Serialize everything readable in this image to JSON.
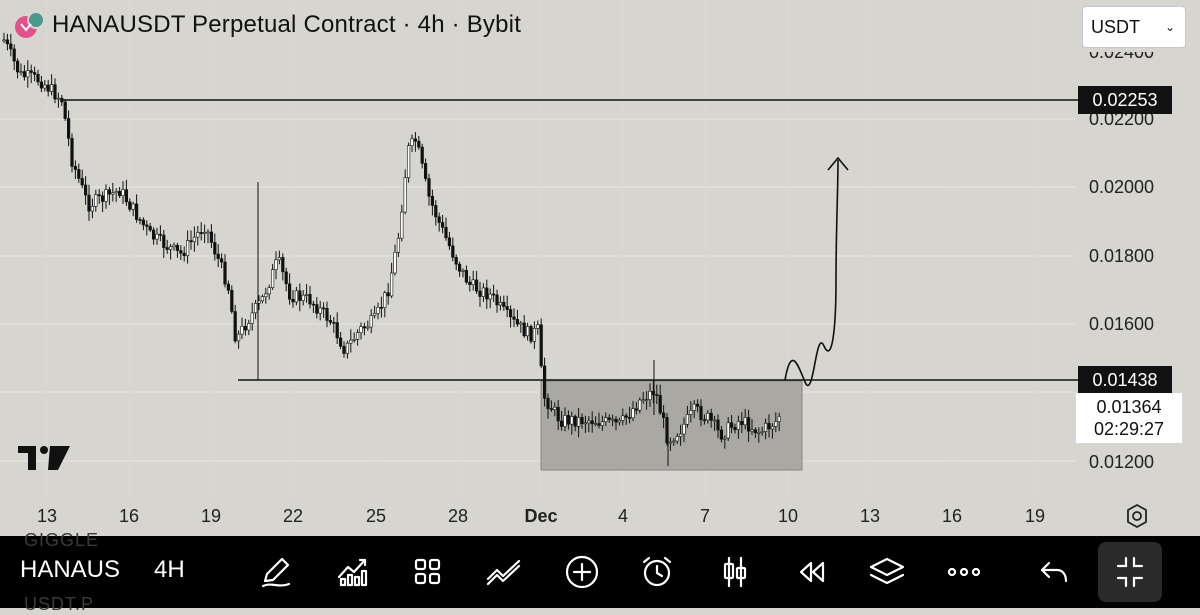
{
  "header": {
    "title": "HANAUSDT Perpetual Contract · 4h · Bybit",
    "currency_select": "USDT"
  },
  "price_axis": {
    "top_partial_label": "0.02400",
    "labels": [
      "0.02200",
      "0.02000",
      "0.01800",
      "0.01600",
      "0.01200"
    ],
    "resistance_tag": "0.02253",
    "support_tag": "0.01438",
    "last_price": "0.01364",
    "countdown": "02:29:27"
  },
  "time_axis": {
    "labels": [
      "13",
      "16",
      "19",
      "22",
      "25",
      "28",
      "Dec",
      "4",
      "7",
      "10",
      "13",
      "16",
      "19"
    ]
  },
  "toolbar": {
    "symbol": "HANAUS",
    "timeframe": "4H",
    "ghost_top": "GIGGLE",
    "ghost_bottom": "USDT.P"
  },
  "colors": {
    "background": "#d6d5d0",
    "candle_up": "#ffffff",
    "candle_down": "#111111",
    "range_box": "#9a9893",
    "toolbar": "#000000"
  },
  "chart_data": {
    "type": "candlestick",
    "symbol": "HANAUSDT",
    "timeframe": "4h",
    "y_range": [
      0.0115,
      0.0245
    ],
    "horizontal_lines": [
      0.02253,
      0.01438
    ],
    "range_box": {
      "from": "Dec 1",
      "to": "Dec 10",
      "low": 0.0118,
      "high": 0.01438
    },
    "last_price": 0.01364,
    "projection": "sketched arrow upward from 0.0145 toward 0.021"
  }
}
